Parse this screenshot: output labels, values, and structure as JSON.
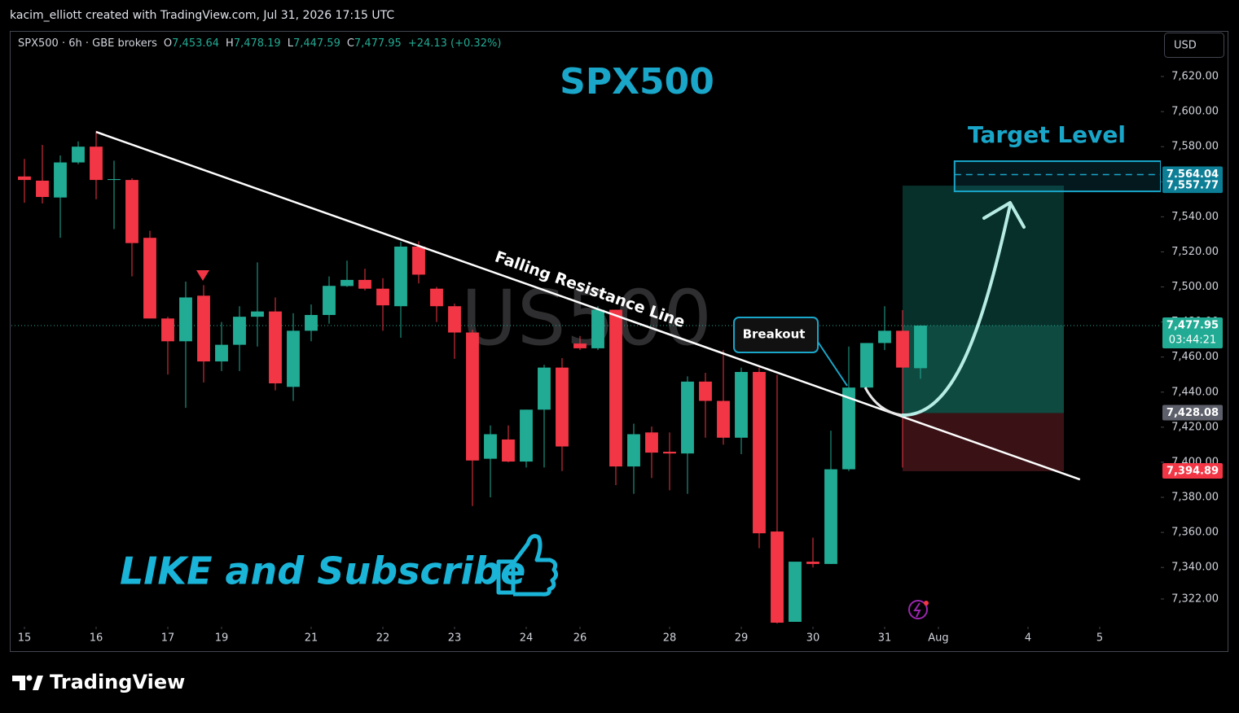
{
  "header": "kacim_elliott created with TradingView.com, Jul 31, 2026 17:15 UTC",
  "brand": "TradingView",
  "chart_data": {
    "type": "candlestick",
    "title": "SPX500",
    "watermark": "US500",
    "currency": "USD",
    "cta": "LIKE and Subscribe",
    "legend": {
      "symbol": "SPX500 · 6h · GBE brokers",
      "keys": [
        "O",
        "H",
        "L",
        "C"
      ],
      "values": [
        "7,453.64",
        "7,478.19",
        "7,447.59",
        "7,477.95"
      ],
      "change": "+24.13 (+0.32%)"
    },
    "up_color": "#22ab94",
    "down_color": "#f23645",
    "open": [
      7563,
      7560.6,
      7551,
      7571,
      7580,
      7561,
      7561,
      7528,
      7482,
      7469,
      7495,
      7457.5,
      7467,
      7483,
      7486,
      7443,
      7475,
      7484,
      7500.5,
      7504,
      7499,
      7489,
      7523,
      7499,
      7489,
      7474,
      7402,
      7413,
      7400.4,
      7430,
      7454,
      7467.7,
      7465,
      7487,
      7397.6,
      7417,
      7406,
      7405,
      7446,
      7435,
      7414,
      7451.5,
      7360.5,
      7309,
      7343.3,
      7342,
      7396,
      7442.6,
      7468,
      7475,
      7453.64
    ],
    "high": [
      7573,
      7581,
      7575,
      7583,
      7589,
      7572,
      7562,
      7532,
      7483,
      7503,
      7501,
      7480,
      7489,
      7514,
      7494,
      7485,
      7490,
      7506,
      7515,
      7510.4,
      7505,
      7525.8,
      7526,
      7500,
      7490.5,
      7475.6,
      7421,
      7421,
      7430,
      7455.6,
      7459.4,
      7472,
      7489,
      7487,
      7422,
      7420.4,
      7417,
      7449,
      7451,
      7464,
      7454,
      7454,
      7449.8,
      7343.3,
      7357,
      7418,
      7466,
      7468,
      7489,
      7486.8,
      7478.19
    ],
    "low": [
      7548,
      7547.6,
      7528,
      7570,
      7550,
      7533,
      7506,
      7482,
      7450,
      7431,
      7445.5,
      7452,
      7452,
      7466,
      7441,
      7435,
      7469,
      7479,
      7500,
      7498,
      7475,
      7471,
      7502,
      7480,
      7459,
      7375,
      7380,
      7400,
      7397,
      7397,
      7395,
      7464,
      7464,
      7387,
      7382,
      7391,
      7384,
      7382,
      7414,
      7410,
      7404.6,
      7351,
      7308,
      7309,
      7340,
      7342,
      7395,
      7442,
      7464,
      7397,
      7447.59
    ],
    "close": [
      7561,
      7551.3,
      7571,
      7580,
      7561,
      7561.5,
      7525,
      7482,
      7469,
      7494,
      7457.5,
      7467,
      7483,
      7486,
      7445,
      7475,
      7484,
      7500.6,
      7504,
      7499,
      7489.5,
      7523,
      7507,
      7489,
      7474,
      7401,
      7416,
      7400.4,
      7430,
      7454,
      7409,
      7465,
      7487,
      7397.6,
      7416,
      7405.5,
      7405,
      7446,
      7435,
      7414,
      7451.5,
      7359.5,
      7308.5,
      7343.3,
      7342,
      7396,
      7442.6,
      7468,
      7475,
      7454,
      7477.95
    ],
    "xlim": [
      -0.727,
      63.41
    ],
    "xticks": [
      {
        "value": 0,
        "label": "15"
      },
      {
        "value": 4,
        "label": "16"
      },
      {
        "value": 8,
        "label": "17"
      },
      {
        "value": 11,
        "label": "19"
      },
      {
        "value": 16,
        "label": "21"
      },
      {
        "value": 20,
        "label": "22"
      },
      {
        "value": 24,
        "label": "23"
      },
      {
        "value": 28,
        "label": "24"
      },
      {
        "value": 31,
        "label": "26"
      },
      {
        "value": 36,
        "label": "28"
      },
      {
        "value": 40,
        "label": "29"
      },
      {
        "value": 44,
        "label": "30"
      },
      {
        "value": 48,
        "label": "31"
      },
      {
        "value": 51,
        "label": "Aug"
      },
      {
        "value": 56,
        "label": "4"
      },
      {
        "value": 60,
        "label": "5"
      }
    ],
    "ylim": [
      7306.2,
      7646
    ],
    "yticks": [
      {
        "value": 7620,
        "label": "7,620.00"
      },
      {
        "value": 7600,
        "label": "7,600.00"
      },
      {
        "value": 7580,
        "label": "7,580.00"
      },
      {
        "value": 7560,
        "label": "7,560.00"
      },
      {
        "value": 7540,
        "label": "7,540.00"
      },
      {
        "value": 7520,
        "label": "7,520.00"
      },
      {
        "value": 7500,
        "label": "7,500.00"
      },
      {
        "value": 7480,
        "label": "7,480.00"
      },
      {
        "value": 7460,
        "label": "7,460.00"
      },
      {
        "value": 7440,
        "label": "7,440.00"
      },
      {
        "value": 7420,
        "label": "7,420.00"
      },
      {
        "value": 7400,
        "label": "7,400.00"
      },
      {
        "value": 7380,
        "label": "7,380.00"
      },
      {
        "value": 7360,
        "label": "7,360.00"
      },
      {
        "value": 7340,
        "label": "7,340.00"
      },
      {
        "value": 7322,
        "label": "7,322.00"
      }
    ],
    "grid": false,
    "price_labels": [
      {
        "value": 7564.04,
        "label": "7,564.04",
        "color": "#0c7f97",
        "line": "dashed"
      },
      {
        "value": 7557.77,
        "label": "7,557.77",
        "color": "#0c7f97"
      },
      {
        "value": 7477.95,
        "label": "7,477.95",
        "sub": "03:44:21",
        "color": "#22ab94",
        "line": "dotted"
      },
      {
        "value": 7428.08,
        "label": "7,428.08",
        "color": "#5d606b"
      },
      {
        "value": 7394.89,
        "label": "7,394.89",
        "color": "#f23645"
      }
    ],
    "trendline": {
      "text": "Falling Resistance Line",
      "x": [
        4,
        58.9
      ],
      "y": [
        7588.4,
        7390.2
      ]
    },
    "position": {
      "x": [
        49,
        58
      ],
      "target": 7557.77,
      "entry": 7428.08,
      "stop": 7394.89
    },
    "target_zone": {
      "text": "Target Level",
      "x": [
        51.9,
        63.41
      ],
      "y": [
        7571.7,
        7554.5
      ],
      "color": "#1aa6c9"
    },
    "callout": "Breakout"
  }
}
